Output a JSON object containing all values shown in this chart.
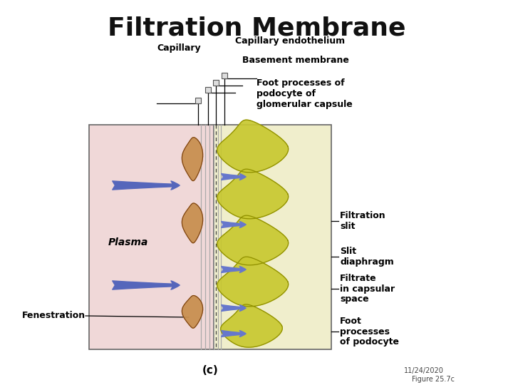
{
  "bg_color": "#ffffff",
  "title_partial": "Filtration Membrane",
  "title_fontsize": 26,
  "diagram": {
    "L": 0.175,
    "R": 0.635,
    "B": 0.08,
    "T": 0.755,
    "MID": 0.415,
    "left_bg": "#f0d8d8",
    "right_bg": "#f0eecc",
    "membrane_color": "#cccccc",
    "endothelial_color": "#c89050",
    "podocyte_color": "#c8c830",
    "podocyte_edge": "#909000",
    "arrow_color_large": "#5566bb",
    "arrow_color_small": "#6677cc"
  },
  "labels_fontsize": 9,
  "capillary_label": "Capillary",
  "cap_endo_label": "Capillary endothelium",
  "basement_label": "Basement membrane",
  "foot_top_label": "Foot processes of\npodocyte of\nglomerular capsule",
  "plasma_label": "Plasma",
  "fenestration_label": "Fenestration",
  "filtration_slit_label": "Filtration\nslit",
  "slit_diaphragm_label": "Slit\ndiaphragm",
  "filtrate_label": "Filtrate\nin capsular\nspace",
  "foot_bottom_label": "Foot\nprocesses\nof podocyte",
  "c_label": "(c)",
  "date_label": "11/24/2020",
  "figure_label": "Figure 25.7c"
}
